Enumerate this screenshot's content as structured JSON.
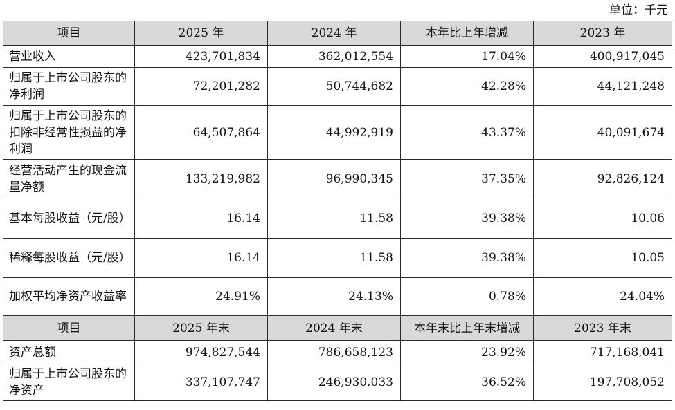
{
  "unit_label": "单位：千元",
  "income_header": [
    "项目",
    "2025 年",
    "2024 年",
    "本年比上年增减",
    "2023 年"
  ],
  "income_rows": [
    {
      "label": "营业收入",
      "y2025": "423,701,834",
      "y2024": "362,012,554",
      "change": "17.04%",
      "y2023": "400,917,045"
    },
    {
      "label": "归属于上市公司股东的净利润",
      "y2025": "72,201,282",
      "y2024": "50,744,682",
      "change": "42.28%",
      "y2023": "44,121,248"
    },
    {
      "label": "归属于上市公司股东的扣除非经常性损益的净利润",
      "y2025": "64,507,864",
      "y2024": "44,992,919",
      "change": "43.37%",
      "y2023": "40,091,674"
    },
    {
      "label": "经营活动产生的现金流量净额",
      "y2025": "133,219,982",
      "y2024": "96,990,345",
      "change": "37.35%",
      "y2023": "92,826,124"
    },
    {
      "label": "基本每股收益（元/股）",
      "y2025": "16.14",
      "y2024": "11.58",
      "change": "39.38%",
      "y2023": "10.06"
    },
    {
      "label": "稀释每股收益（元/股）",
      "y2025": "16.14",
      "y2024": "11.58",
      "change": "39.38%",
      "y2023": "10.05"
    },
    {
      "label": "加权平均净资产收益率",
      "y2025": "24.91%",
      "y2024": "24.13%",
      "change": "0.78%",
      "y2023": "24.04%"
    }
  ],
  "balance_header": [
    "项目",
    "2025 年末",
    "2024 年末",
    "本年末比上年末增减",
    "2023 年末"
  ],
  "balance_rows": [
    {
      "label": "资产总额",
      "y2025": "974,827,544",
      "y2024": "786,658,123",
      "change": "23.92%",
      "y2023": "717,168,041"
    },
    {
      "label": "归属于上市公司股东的净资产",
      "y2025": "337,107,747",
      "y2024": "246,930,033",
      "change": "36.52%",
      "y2023": "197,708,052"
    }
  ]
}
